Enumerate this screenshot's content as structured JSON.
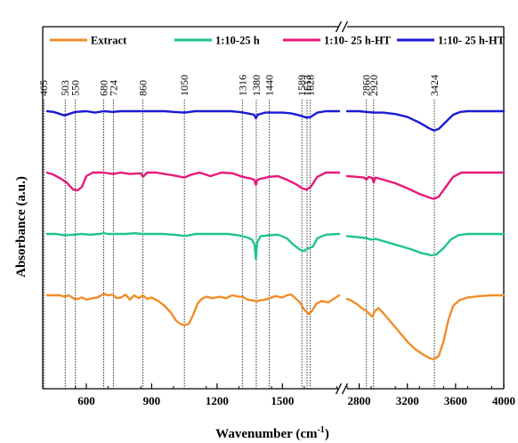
{
  "chart_data": {
    "type": "line",
    "title": "",
    "xlabel": "Wavenumber (cm",
    "xlabel_sup": "-1",
    "xlabel_close": ")",
    "ylabel": "Absorbance (a.u.)",
    "axis_break": true,
    "segments": [
      {
        "xlim": [
          400,
          1760
        ],
        "ticks": [
          600,
          900,
          1200,
          1500
        ]
      },
      {
        "xlim": [
          2700,
          4000
        ],
        "ticks": [
          2800,
          3200,
          3600,
          4000
        ]
      }
    ],
    "tick_labels": [
      "600",
      "900",
      "1200",
      "1500",
      "2800",
      "3200",
      "3600",
      "4000"
    ],
    "reference_peaks": [
      405,
      503,
      550,
      680,
      724,
      860,
      1050,
      1316,
      1380,
      1440,
      1589,
      1613,
      1628,
      2860,
      2920,
      3424
    ],
    "peak_labels": [
      "405",
      "503",
      "550",
      "680",
      "724",
      "860",
      "1050",
      "1316",
      "1380",
      "1440",
      "1589",
      "1613",
      "1628",
      "2860",
      "2920",
      "3424"
    ],
    "legend_position": "top",
    "series": [
      {
        "name": "Extract",
        "color": "#f28c28",
        "offset": 0,
        "seg1": [
          [
            420,
            0.0
          ],
          [
            450,
            0.0
          ],
          [
            480,
            0.0
          ],
          [
            500,
            -0.02
          ],
          [
            520,
            0.0
          ],
          [
            550,
            -0.06
          ],
          [
            580,
            -0.03
          ],
          [
            600,
            -0.06
          ],
          [
            630,
            -0.04
          ],
          [
            650,
            -0.03
          ],
          [
            680,
            0.02
          ],
          [
            700,
            0.0
          ],
          [
            720,
            0.01
          ],
          [
            740,
            -0.04
          ],
          [
            760,
            -0.03
          ],
          [
            780,
            0.01
          ],
          [
            800,
            -0.06
          ],
          [
            820,
            0.0
          ],
          [
            840,
            -0.04
          ],
          [
            860,
            0.0
          ],
          [
            880,
            -0.05
          ],
          [
            900,
            -0.03
          ],
          [
            930,
            -0.08
          ],
          [
            960,
            -0.15
          ],
          [
            990,
            -0.25
          ],
          [
            1010,
            -0.35
          ],
          [
            1030,
            -0.4
          ],
          [
            1050,
            -0.42
          ],
          [
            1070,
            -0.4
          ],
          [
            1090,
            -0.28
          ],
          [
            1110,
            -0.12
          ],
          [
            1130,
            -0.05
          ],
          [
            1150,
            -0.02
          ],
          [
            1180,
            -0.04
          ],
          [
            1210,
            -0.02
          ],
          [
            1240,
            -0.04
          ],
          [
            1270,
            0.0
          ],
          [
            1300,
            -0.02
          ],
          [
            1316,
            -0.02
          ],
          [
            1340,
            -0.06
          ],
          [
            1380,
            -0.08
          ],
          [
            1420,
            -0.06
          ],
          [
            1440,
            -0.04
          ],
          [
            1470,
            -0.01
          ],
          [
            1500,
            -0.03
          ],
          [
            1520,
            0.0
          ],
          [
            1540,
            0.01
          ],
          [
            1560,
            -0.04
          ],
          [
            1580,
            -0.1
          ],
          [
            1600,
            -0.2
          ],
          [
            1620,
            -0.26
          ],
          [
            1635,
            -0.22
          ],
          [
            1655,
            -0.12
          ],
          [
            1680,
            -0.08
          ],
          [
            1710,
            -0.1
          ],
          [
            1740,
            -0.04
          ],
          [
            1760,
            0.0
          ]
        ],
        "seg2": [
          [
            2700,
            -0.05
          ],
          [
            2740,
            -0.08
          ],
          [
            2780,
            -0.12
          ],
          [
            2820,
            -0.18
          ],
          [
            2860,
            -0.22
          ],
          [
            2890,
            -0.27
          ],
          [
            2910,
            -0.3
          ],
          [
            2930,
            -0.22
          ],
          [
            2960,
            -0.18
          ],
          [
            3000,
            -0.25
          ],
          [
            3050,
            -0.35
          ],
          [
            3100,
            -0.45
          ],
          [
            3150,
            -0.55
          ],
          [
            3200,
            -0.65
          ],
          [
            3260,
            -0.75
          ],
          [
            3320,
            -0.82
          ],
          [
            3380,
            -0.88
          ],
          [
            3420,
            -0.9
          ],
          [
            3460,
            -0.85
          ],
          [
            3500,
            -0.65
          ],
          [
            3540,
            -0.35
          ],
          [
            3580,
            -0.15
          ],
          [
            3630,
            -0.07
          ],
          [
            3700,
            -0.03
          ],
          [
            3800,
            -0.01
          ],
          [
            3900,
            0.0
          ],
          [
            4000,
            0.0
          ]
        ]
      },
      {
        "name": "1:10-25 h",
        "color": "#1ec48a",
        "offset": 1,
        "seg1": [
          [
            420,
            0.0
          ],
          [
            460,
            0.0
          ],
          [
            500,
            -0.02
          ],
          [
            540,
            -0.01
          ],
          [
            580,
            0.0
          ],
          [
            620,
            -0.01
          ],
          [
            660,
            0.0
          ],
          [
            680,
            0.01
          ],
          [
            700,
            0.0
          ],
          [
            740,
            0.0
          ],
          [
            780,
            0.0
          ],
          [
            820,
            0.01
          ],
          [
            860,
            0.0
          ],
          [
            900,
            0.0
          ],
          [
            950,
            0.0
          ],
          [
            1000,
            -0.01
          ],
          [
            1030,
            -0.02
          ],
          [
            1050,
            -0.03
          ],
          [
            1070,
            -0.02
          ],
          [
            1100,
            0.0
          ],
          [
            1150,
            0.0
          ],
          [
            1200,
            0.0
          ],
          [
            1250,
            0.0
          ],
          [
            1300,
            -0.02
          ],
          [
            1340,
            -0.05
          ],
          [
            1360,
            -0.08
          ],
          [
            1372,
            -0.15
          ],
          [
            1378,
            -0.35
          ],
          [
            1384,
            -0.12
          ],
          [
            1400,
            -0.03
          ],
          [
            1440,
            -0.02
          ],
          [
            1480,
            -0.01
          ],
          [
            1520,
            -0.06
          ],
          [
            1550,
            -0.15
          ],
          [
            1580,
            -0.22
          ],
          [
            1600,
            -0.24
          ],
          [
            1620,
            -0.2
          ],
          [
            1640,
            -0.18
          ],
          [
            1660,
            -0.06
          ],
          [
            1700,
            -0.01
          ],
          [
            1760,
            0.0
          ]
        ],
        "seg2": [
          [
            2700,
            -0.03
          ],
          [
            2760,
            -0.04
          ],
          [
            2820,
            -0.05
          ],
          [
            2860,
            -0.06
          ],
          [
            2900,
            -0.08
          ],
          [
            2940,
            -0.07
          ],
          [
            3000,
            -0.1
          ],
          [
            3080,
            -0.14
          ],
          [
            3160,
            -0.18
          ],
          [
            3240,
            -0.22
          ],
          [
            3320,
            -0.27
          ],
          [
            3400,
            -0.3
          ],
          [
            3440,
            -0.29
          ],
          [
            3500,
            -0.2
          ],
          [
            3560,
            -0.08
          ],
          [
            3620,
            -0.02
          ],
          [
            3700,
            0.0
          ],
          [
            3800,
            0.0
          ],
          [
            4000,
            0.0
          ]
        ]
      },
      {
        "name": "1:10- 25 h-HT",
        "color": "#e8197b",
        "offset": 2,
        "seg1": [
          [
            420,
            0.0
          ],
          [
            450,
            -0.03
          ],
          [
            480,
            -0.08
          ],
          [
            510,
            -0.14
          ],
          [
            540,
            -0.24
          ],
          [
            560,
            -0.25
          ],
          [
            580,
            -0.2
          ],
          [
            600,
            -0.05
          ],
          [
            630,
            0.0
          ],
          [
            680,
            0.0
          ],
          [
            720,
            -0.02
          ],
          [
            760,
            0.0
          ],
          [
            800,
            -0.02
          ],
          [
            850,
            -0.01
          ],
          [
            860,
            -0.06
          ],
          [
            880,
            0.0
          ],
          [
            920,
            0.0
          ],
          [
            960,
            -0.02
          ],
          [
            1000,
            -0.04
          ],
          [
            1050,
            -0.07
          ],
          [
            1080,
            -0.03
          ],
          [
            1120,
            0.0
          ],
          [
            1170,
            -0.05
          ],
          [
            1220,
            0.0
          ],
          [
            1270,
            -0.01
          ],
          [
            1316,
            -0.06
          ],
          [
            1350,
            -0.08
          ],
          [
            1370,
            -0.1
          ],
          [
            1378,
            -0.17
          ],
          [
            1385,
            -0.1
          ],
          [
            1410,
            -0.08
          ],
          [
            1440,
            -0.06
          ],
          [
            1480,
            -0.05
          ],
          [
            1520,
            -0.1
          ],
          [
            1560,
            -0.16
          ],
          [
            1590,
            -0.22
          ],
          [
            1610,
            -0.24
          ],
          [
            1630,
            -0.2
          ],
          [
            1660,
            -0.06
          ],
          [
            1700,
            0.0
          ],
          [
            1760,
            0.0
          ]
        ],
        "seg2": [
          [
            2700,
            -0.05
          ],
          [
            2780,
            -0.06
          ],
          [
            2840,
            -0.07
          ],
          [
            2860,
            -0.1
          ],
          [
            2880,
            -0.06
          ],
          [
            2910,
            -0.08
          ],
          [
            2920,
            -0.14
          ],
          [
            2935,
            -0.07
          ],
          [
            3000,
            -0.1
          ],
          [
            3100,
            -0.15
          ],
          [
            3200,
            -0.22
          ],
          [
            3300,
            -0.3
          ],
          [
            3380,
            -0.35
          ],
          [
            3420,
            -0.37
          ],
          [
            3460,
            -0.34
          ],
          [
            3520,
            -0.2
          ],
          [
            3580,
            -0.06
          ],
          [
            3650,
            0.0
          ],
          [
            3800,
            0.0
          ],
          [
            4000,
            0.0
          ]
        ]
      },
      {
        "name": "1:10- 25 h-HT",
        "color": "#1a1ad6",
        "offset": 3,
        "seg1": [
          [
            420,
            0.0
          ],
          [
            450,
            -0.01
          ],
          [
            480,
            -0.04
          ],
          [
            500,
            -0.06
          ],
          [
            520,
            -0.04
          ],
          [
            550,
            -0.01
          ],
          [
            600,
            0.0
          ],
          [
            640,
            -0.02
          ],
          [
            680,
            0.0
          ],
          [
            720,
            -0.01
          ],
          [
            760,
            0.0
          ],
          [
            800,
            0.0
          ],
          [
            860,
            0.0
          ],
          [
            900,
            0.0
          ],
          [
            960,
            0.0
          ],
          [
            1000,
            -0.01
          ],
          [
            1050,
            -0.02
          ],
          [
            1100,
            0.0
          ],
          [
            1150,
            0.0
          ],
          [
            1200,
            0.0
          ],
          [
            1260,
            0.0
          ],
          [
            1300,
            -0.01
          ],
          [
            1340,
            -0.03
          ],
          [
            1370,
            -0.05
          ],
          [
            1378,
            -0.1
          ],
          [
            1386,
            -0.05
          ],
          [
            1420,
            -0.02
          ],
          [
            1460,
            -0.02
          ],
          [
            1500,
            -0.02
          ],
          [
            1540,
            -0.03
          ],
          [
            1580,
            -0.06
          ],
          [
            1610,
            -0.09
          ],
          [
            1630,
            -0.08
          ],
          [
            1660,
            -0.02
          ],
          [
            1700,
            0.0
          ],
          [
            1760,
            0.0
          ]
        ],
        "seg2": [
          [
            2700,
            0.0
          ],
          [
            2800,
            0.0
          ],
          [
            2860,
            -0.01
          ],
          [
            2920,
            -0.02
          ],
          [
            3000,
            -0.02
          ],
          [
            3100,
            -0.04
          ],
          [
            3200,
            -0.08
          ],
          [
            3300,
            -0.16
          ],
          [
            3380,
            -0.24
          ],
          [
            3420,
            -0.27
          ],
          [
            3460,
            -0.25
          ],
          [
            3520,
            -0.15
          ],
          [
            3580,
            -0.05
          ],
          [
            3640,
            -0.01
          ],
          [
            3700,
            0.0
          ],
          [
            4000,
            0.0
          ]
        ]
      }
    ]
  }
}
